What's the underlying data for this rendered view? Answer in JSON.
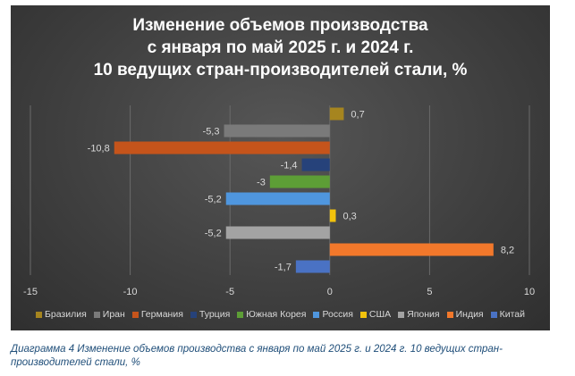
{
  "chart_data": {
    "type": "bar",
    "orientation": "horizontal",
    "title_lines": [
      "Изменение объемов производства",
      "с января по май 2025 г. и 2024 г.",
      "10 ведущих стран-производителей стали, %"
    ],
    "categories": [
      "Бразилия",
      "Иран",
      "Германия",
      "Турция",
      "Южная Корея",
      "Россия",
      "США",
      "Япония",
      "Индия",
      "Китай"
    ],
    "values": [
      0.7,
      -5.3,
      -10.8,
      -1.4,
      -3,
      -5.2,
      0.3,
      -5.2,
      8.2,
      -1.7
    ],
    "value_labels": [
      "0,7",
      "-5,3",
      "-10,8",
      "-1,4",
      "-3",
      "-5,2",
      "0,3",
      "-5,2",
      "8,2",
      "-1,7"
    ],
    "colors": [
      "#a6851f",
      "#7a7a7a",
      "#c5541b",
      "#26427a",
      "#5d9e36",
      "#4f96de",
      "#f2c20c",
      "#a3a3a3",
      "#f2782b",
      "#4a72c4"
    ],
    "xlim": [
      -15,
      10
    ],
    "xticks": [
      -15,
      -10,
      -5,
      0,
      5,
      10
    ],
    "gridlines": true,
    "legend_position": "bottom"
  },
  "caption": "Диаграмма 4 Изменение объемов производства с января по май 2025 г. и 2024 г. 10 ведущих стран-производителей стали, %"
}
